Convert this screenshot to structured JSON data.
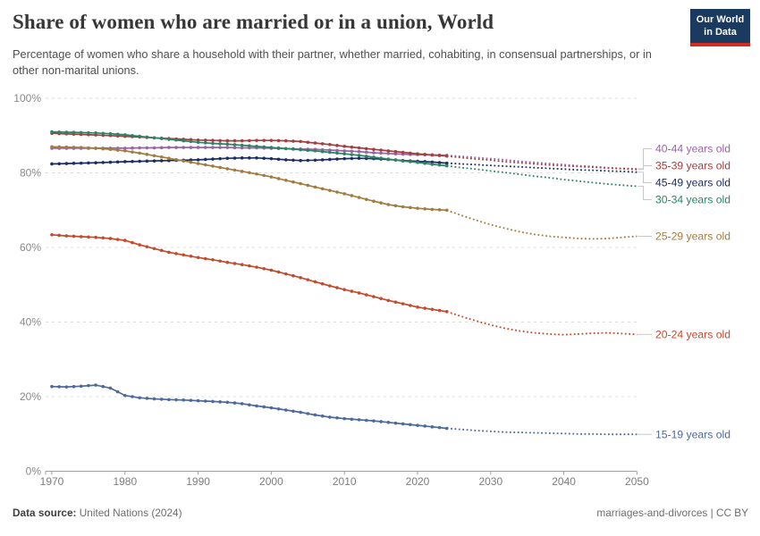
{
  "header": {
    "title": "Share of women who are married or in a union, World",
    "subtitle": "Percentage of women who share a household with their partner, whether married, cohabiting, in consensual partnerships, or in other non-marital unions.",
    "logo": {
      "line1": "Our World",
      "line2": "in Data",
      "bg_color": "#1A3A5F",
      "accent_color": "#D42B21"
    }
  },
  "footer": {
    "source_label": "Data source:",
    "source_value": "United Nations (2024)",
    "note": "marriages-and-divorces | CC BY"
  },
  "chart_data": {
    "type": "line",
    "title": "Share of women who are married or in a union, World",
    "xlabel": "",
    "ylabel": "",
    "xlim": [
      1969,
      2051
    ],
    "ylim": [
      0,
      100
    ],
    "x_tick_years": [
      1970,
      1980,
      1990,
      2000,
      2010,
      2020,
      2030,
      2040,
      2050
    ],
    "y_tick_labels": [
      "0%",
      "20%",
      "40%",
      "60%",
      "80%",
      "100%"
    ],
    "y_tick_values": [
      0,
      20,
      40,
      60,
      80,
      100
    ],
    "grid": "horizontal dashed",
    "legend_position": "right of lines, colored labels",
    "estimate_end_year": 2024,
    "estimate_style": "solid with year markers",
    "projection_style": "dotted",
    "series": [
      {
        "name": "40-44 years old",
        "color": "#9A62A9",
        "estimate": {
          "years": [
            1970,
            1972,
            1974,
            1976,
            1978,
            1980,
            1982,
            1984,
            1986,
            1988,
            1990,
            1992,
            1994,
            1996,
            1998,
            2000,
            2002,
            2004,
            2006,
            2008,
            2010,
            2012,
            2014,
            2016,
            2018,
            2020,
            2022,
            2024
          ],
          "values": [
            86.6,
            86.6,
            86.6,
            86.6,
            86.6,
            86.6,
            86.7,
            86.7,
            86.8,
            86.8,
            86.8,
            86.8,
            86.8,
            86.7,
            86.7,
            86.6,
            86.5,
            86.4,
            86.3,
            86.1,
            85.9,
            85.7,
            85.4,
            85.2,
            85.0,
            84.9,
            84.8,
            84.7
          ]
        },
        "projection": {
          "years": [
            2024,
            2026,
            2028,
            2030,
            2032,
            2034,
            2036,
            2038,
            2040,
            2042,
            2044,
            2046,
            2048,
            2050
          ],
          "values": [
            84.7,
            84.4,
            84.1,
            83.8,
            83.5,
            83.1,
            82.8,
            82.5,
            82.2,
            81.9,
            81.7,
            81.4,
            81.2,
            81.1
          ]
        }
      },
      {
        "name": "35-39 years old",
        "color": "#A2403F",
        "estimate": {
          "years": [
            1970,
            1972,
            1974,
            1976,
            1978,
            1980,
            1982,
            1984,
            1986,
            1988,
            1990,
            1992,
            1994,
            1996,
            1998,
            2000,
            2002,
            2004,
            2006,
            2008,
            2010,
            2012,
            2014,
            2016,
            2018,
            2020,
            2022,
            2024
          ],
          "values": [
            90.6,
            90.45,
            90.3,
            90.15,
            90.0,
            89.8,
            89.6,
            89.4,
            89.2,
            89.0,
            88.8,
            88.7,
            88.6,
            88.6,
            88.7,
            88.7,
            88.6,
            88.4,
            88.0,
            87.6,
            87.1,
            86.7,
            86.3,
            85.9,
            85.5,
            85.1,
            84.8,
            84.5
          ]
        },
        "projection": {
          "years": [
            2024,
            2026,
            2028,
            2030,
            2032,
            2034,
            2036,
            2038,
            2040,
            2042,
            2044,
            2046,
            2048,
            2050
          ],
          "values": [
            84.5,
            84.1,
            83.7,
            83.4,
            83.0,
            82.7,
            82.4,
            82.1,
            81.9,
            81.7,
            81.5,
            81.3,
            81.1,
            80.9
          ]
        }
      },
      {
        "name": "45-49 years old",
        "color": "#1C2E63",
        "estimate": {
          "years": [
            1970,
            1972,
            1974,
            1976,
            1978,
            1980,
            1982,
            1984,
            1986,
            1988,
            1990,
            1992,
            1994,
            1996,
            1998,
            2000,
            2002,
            2004,
            2006,
            2008,
            2010,
            2012,
            2014,
            2016,
            2018,
            2020,
            2022,
            2024
          ],
          "values": [
            82.4,
            82.5,
            82.6,
            82.7,
            82.85,
            83.0,
            83.1,
            83.2,
            83.3,
            83.4,
            83.5,
            83.7,
            83.9,
            84.0,
            84.0,
            83.8,
            83.5,
            83.3,
            83.4,
            83.6,
            83.8,
            83.9,
            83.8,
            83.6,
            83.3,
            83.1,
            82.9,
            82.6
          ]
        },
        "projection": {
          "years": [
            2024,
            2026,
            2028,
            2030,
            2032,
            2034,
            2036,
            2038,
            2040,
            2042,
            2044,
            2046,
            2048,
            2050
          ],
          "values": [
            82.6,
            82.4,
            82.2,
            82.0,
            81.8,
            81.6,
            81.4,
            81.2,
            81.0,
            80.8,
            80.7,
            80.5,
            80.4,
            80.2
          ]
        }
      },
      {
        "name": "30-34 years old",
        "color": "#2C8465",
        "estimate": {
          "years": [
            1970,
            1972,
            1974,
            1976,
            1978,
            1980,
            1982,
            1984,
            1986,
            1988,
            1990,
            1992,
            1994,
            1996,
            1998,
            2000,
            2002,
            2004,
            2006,
            2008,
            2010,
            2012,
            2014,
            2016,
            2018,
            2020,
            2022,
            2024
          ],
          "values": [
            91.0,
            90.9,
            90.8,
            90.7,
            90.5,
            90.2,
            89.8,
            89.4,
            89.0,
            88.6,
            88.2,
            87.9,
            87.7,
            87.4,
            87.1,
            86.8,
            86.5,
            86.2,
            85.9,
            85.5,
            85.1,
            84.7,
            84.2,
            83.7,
            83.2,
            82.8,
            82.3,
            81.9
          ]
        },
        "projection": {
          "years": [
            2024,
            2026,
            2028,
            2030,
            2032,
            2034,
            2036,
            2038,
            2040,
            2042,
            2044,
            2046,
            2048,
            2050
          ],
          "values": [
            81.9,
            81.4,
            81.0,
            80.5,
            80.1,
            79.6,
            79.1,
            78.7,
            78.2,
            77.8,
            77.4,
            77.0,
            76.7,
            76.4
          ]
        }
      },
      {
        "name": "25-29 years old",
        "color": "#A27C3F",
        "estimate": {
          "years": [
            1970,
            1972,
            1974,
            1976,
            1978,
            1980,
            1982,
            1984,
            1986,
            1988,
            1990,
            1992,
            1994,
            1996,
            1998,
            2000,
            2002,
            2004,
            2006,
            2008,
            2010,
            2012,
            2014,
            2016,
            2018,
            2020,
            2022,
            2024
          ],
          "values": [
            87.0,
            86.9,
            86.8,
            86.6,
            86.3,
            85.9,
            85.3,
            84.6,
            83.9,
            83.2,
            82.5,
            81.8,
            81.1,
            80.4,
            79.7,
            78.9,
            78.0,
            77.1,
            76.2,
            75.3,
            74.4,
            73.4,
            72.4,
            71.5,
            70.9,
            70.5,
            70.2,
            70.0
          ]
        },
        "projection": {
          "years": [
            2024,
            2026,
            2028,
            2030,
            2032,
            2034,
            2036,
            2038,
            2040,
            2042,
            2044,
            2046,
            2048,
            2050
          ],
          "values": [
            70.0,
            68.6,
            67.3,
            66.1,
            65.1,
            64.2,
            63.5,
            63.0,
            62.7,
            62.4,
            62.3,
            62.4,
            62.7,
            63.0
          ]
        }
      },
      {
        "name": "20-24 years old",
        "color": "#C44A2B",
        "estimate": {
          "years": [
            1970,
            1972,
            1974,
            1976,
            1978,
            1980,
            1982,
            1984,
            1986,
            1988,
            1990,
            1992,
            1994,
            1996,
            1998,
            2000,
            2002,
            2004,
            2006,
            2008,
            2010,
            2012,
            2014,
            2016,
            2018,
            2020,
            2022,
            2024
          ],
          "values": [
            63.4,
            63.1,
            62.9,
            62.7,
            62.4,
            61.9,
            60.7,
            59.7,
            58.7,
            58.0,
            57.3,
            56.7,
            56.0,
            55.4,
            54.7,
            53.9,
            52.9,
            51.9,
            50.8,
            49.7,
            48.7,
            47.8,
            46.8,
            45.8,
            44.9,
            44.0,
            43.4,
            42.8
          ]
        },
        "projection": {
          "years": [
            2024,
            2026,
            2028,
            2030,
            2032,
            2034,
            2036,
            2038,
            2040,
            2042,
            2044,
            2046,
            2048,
            2050
          ],
          "values": [
            42.8,
            41.5,
            40.3,
            39.2,
            38.3,
            37.6,
            37.1,
            36.8,
            36.6,
            36.8,
            37.0,
            37.1,
            36.9,
            36.7
          ]
        }
      },
      {
        "name": "15-19 years old",
        "color": "#4C6A9C",
        "estimate": {
          "years": [
            1970,
            1972,
            1974,
            1976,
            1978,
            1980,
            1982,
            1984,
            1986,
            1988,
            1990,
            1992,
            1994,
            1996,
            1998,
            2000,
            2002,
            2004,
            2006,
            2008,
            2010,
            2012,
            2014,
            2016,
            2018,
            2020,
            2022,
            2024
          ],
          "values": [
            22.7,
            22.6,
            22.8,
            23.1,
            22.3,
            20.3,
            19.7,
            19.4,
            19.2,
            19.1,
            18.9,
            18.7,
            18.5,
            18.1,
            17.5,
            17.0,
            16.4,
            15.8,
            15.1,
            14.5,
            14.1,
            13.8,
            13.5,
            13.1,
            12.7,
            12.3,
            11.9,
            11.5
          ]
        },
        "projection": {
          "years": [
            2024,
            2026,
            2028,
            2030,
            2032,
            2034,
            2036,
            2038,
            2040,
            2042,
            2044,
            2046,
            2048,
            2050
          ],
          "values": [
            11.5,
            11.2,
            10.9,
            10.7,
            10.5,
            10.4,
            10.3,
            10.2,
            10.1,
            10.0,
            10.0,
            9.9,
            9.9,
            9.9
          ]
        }
      }
    ]
  }
}
